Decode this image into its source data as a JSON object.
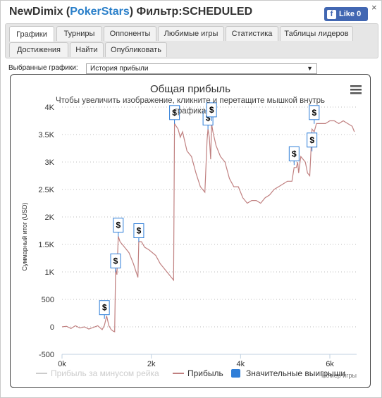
{
  "header": {
    "player": "NewDimix",
    "room": "PokerStars",
    "filter": "Фильтр:SCHEDULED",
    "like_label": "Like 0",
    "close": "×"
  },
  "tabs": [
    {
      "label": "Графики",
      "active": true
    },
    {
      "label": "Турниры"
    },
    {
      "label": "Оппоненты"
    },
    {
      "label": "Любимые игры"
    },
    {
      "label": "Статистика"
    },
    {
      "label": "Таблицы лидеров"
    },
    {
      "label": "Достижения"
    },
    {
      "label": "Найти"
    },
    {
      "label": "Опубликовать"
    }
  ],
  "selector": {
    "label": "Выбранные графики:",
    "value": "История прибыли",
    "arrow": "▼"
  },
  "menu_icon": "hamburger-icon",
  "chart_data": {
    "type": "line",
    "title": "Общая прибыль",
    "subtitle": "Чтобы увеличить изображение, кликните и перетащите мышкой внутрь графика",
    "xlabel": "Номер игры",
    "ylabel": "Суммарный итог (USD)",
    "xlim": [
      0,
      6600
    ],
    "ylim": [
      -500,
      4000
    ],
    "x_ticks": [
      "0k",
      "2k",
      "4k",
      "6k"
    ],
    "y_ticks": [
      "-500",
      "0",
      "500",
      "1K",
      "1.5K",
      "2K",
      "2.5K",
      "3K",
      "3.5K",
      "4K"
    ],
    "grid": true,
    "legend_position": "bottom",
    "legend": [
      {
        "name": "Прибыль за минусом рейка",
        "color": "#cccccc",
        "hidden": true
      },
      {
        "name": "Прибыль",
        "color": "#c08080"
      },
      {
        "name": "Значительные выигрыши",
        "color": "#2f7ed8"
      }
    ],
    "series": [
      {
        "name": "Прибыль",
        "color": "#c08080",
        "points": [
          [
            0,
            0
          ],
          [
            100,
            10
          ],
          [
            200,
            -30
          ],
          [
            300,
            20
          ],
          [
            400,
            -20
          ],
          [
            500,
            0
          ],
          [
            600,
            -40
          ],
          [
            700,
            -10
          ],
          [
            800,
            20
          ],
          [
            900,
            -50
          ],
          [
            950,
            30
          ],
          [
            1000,
            200
          ],
          [
            1050,
            20
          ],
          [
            1100,
            -50
          ],
          [
            1150,
            -80
          ],
          [
            1180,
            -90
          ],
          [
            1200,
            1050
          ],
          [
            1230,
            950
          ],
          [
            1260,
            1650
          ],
          [
            1300,
            1550
          ],
          [
            1400,
            1450
          ],
          [
            1500,
            1350
          ],
          [
            1600,
            1150
          ],
          [
            1700,
            900
          ],
          [
            1720,
            1550
          ],
          [
            1780,
            1550
          ],
          [
            1850,
            1450
          ],
          [
            1950,
            1400
          ],
          [
            2100,
            1300
          ],
          [
            2200,
            1150
          ],
          [
            2300,
            1050
          ],
          [
            2400,
            950
          ],
          [
            2500,
            850
          ],
          [
            2520,
            3700
          ],
          [
            2560,
            3650
          ],
          [
            2600,
            3600
          ],
          [
            2650,
            3450
          ],
          [
            2700,
            3550
          ],
          [
            2800,
            3200
          ],
          [
            2900,
            3100
          ],
          [
            3000,
            2800
          ],
          [
            3100,
            2550
          ],
          [
            3200,
            2450
          ],
          [
            3250,
            3400
          ],
          [
            3270,
            3600
          ],
          [
            3300,
            3450
          ],
          [
            3330,
            3050
          ],
          [
            3350,
            3700
          ],
          [
            3380,
            3550
          ],
          [
            3450,
            3300
          ],
          [
            3550,
            3100
          ],
          [
            3650,
            3000
          ],
          [
            3750,
            2700
          ],
          [
            3850,
            2550
          ],
          [
            3950,
            2550
          ],
          [
            4050,
            2350
          ],
          [
            4150,
            2250
          ],
          [
            4250,
            2300
          ],
          [
            4350,
            2300
          ],
          [
            4450,
            2250
          ],
          [
            4550,
            2350
          ],
          [
            4650,
            2400
          ],
          [
            4750,
            2500
          ],
          [
            4850,
            2550
          ],
          [
            4950,
            2600
          ],
          [
            5050,
            2650
          ],
          [
            5150,
            2650
          ],
          [
            5200,
            2900
          ],
          [
            5250,
            2900
          ],
          [
            5280,
            3000
          ],
          [
            5300,
            2800
          ],
          [
            5350,
            3100
          ],
          [
            5450,
            3000
          ],
          [
            5500,
            2800
          ],
          [
            5550,
            2750
          ],
          [
            5600,
            3600
          ],
          [
            5650,
            3550
          ],
          [
            5700,
            3700
          ],
          [
            5800,
            3700
          ],
          [
            5900,
            3700
          ],
          [
            6000,
            3750
          ],
          [
            6100,
            3750
          ],
          [
            6200,
            3700
          ],
          [
            6300,
            3750
          ],
          [
            6400,
            3700
          ],
          [
            6500,
            3650
          ],
          [
            6550,
            3550
          ]
        ]
      }
    ],
    "markers": [
      {
        "x": 950,
        "y": 350,
        "label": "$"
      },
      {
        "x": 1200,
        "y": 1200,
        "label": "$"
      },
      {
        "x": 1260,
        "y": 1850,
        "label": "$"
      },
      {
        "x": 1720,
        "y": 1750,
        "label": "$"
      },
      {
        "x": 2520,
        "y": 3900,
        "label": "$"
      },
      {
        "x": 3270,
        "y": 3800,
        "label": "$"
      },
      {
        "x": 3350,
        "y": 3950,
        "label": "$"
      },
      {
        "x": 5200,
        "y": 3150,
        "label": "$"
      },
      {
        "x": 5600,
        "y": 3400,
        "label": "$"
      },
      {
        "x": 5650,
        "y": 3900,
        "label": "$"
      }
    ]
  }
}
